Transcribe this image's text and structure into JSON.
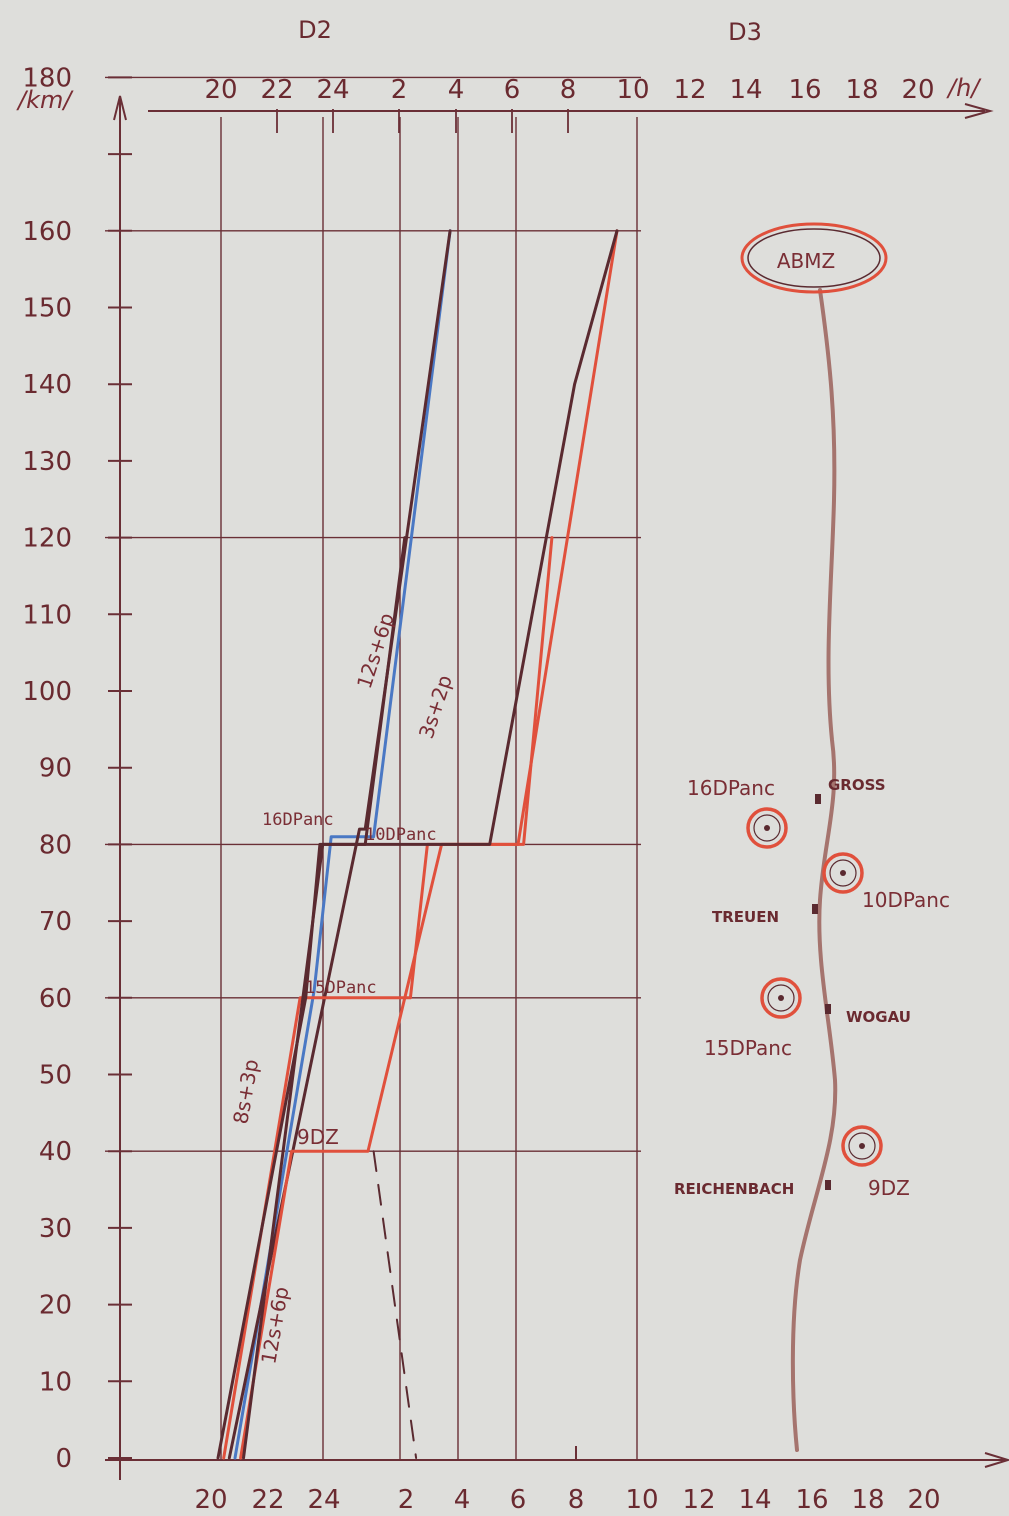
{
  "chart_data": {
    "type": "line",
    "title": "",
    "ylabel": "/km/",
    "xlabel": "/h/",
    "day_labels": [
      "D2",
      "D3"
    ],
    "y_ticks": [
      0,
      10,
      20,
      30,
      40,
      50,
      60,
      70,
      80,
      90,
      100,
      110,
      120,
      130,
      140,
      150,
      160,
      170,
      180
    ],
    "y_tick_labels": [
      "0",
      "10",
      "20",
      "30",
      "40",
      "50",
      "60",
      "70",
      "80",
      "90",
      "100",
      "110",
      "120",
      "130",
      "140",
      "150",
      "160",
      "",
      "180"
    ],
    "ylim": [
      0,
      180
    ],
    "x_tick_labels_top": [
      "20",
      "22",
      "24",
      "2",
      "4",
      "6",
      "8",
      "10",
      "12",
      "14",
      "16",
      "18",
      "20"
    ],
    "x_tick_labels_bottom": [
      "20",
      "22",
      "24",
      "2",
      "4",
      "6",
      "8",
      "10",
      "12",
      "14",
      "16",
      "18",
      "20"
    ],
    "x_unit": "hours elapsed from 20h on D2",
    "xlim": [
      0,
      24
    ],
    "grid": true,
    "colors": {
      "ink_dark": "#5a2a30",
      "ink_red": "#e0503c",
      "ink_blue": "#4a78c4",
      "route": "#a5746e",
      "paper": "#dededb"
    },
    "series": [
      {
        "name": "12s+6p",
        "color": "#4a78c4",
        "points": [
          [
            0.6,
            0
          ],
          [
            3.4,
            61
          ],
          [
            4,
            81
          ],
          [
            5.5,
            81
          ],
          [
            8.2,
            160
          ]
        ]
      },
      {
        "name": "",
        "color": "#5a2a30",
        "points": [
          [
            0.4,
            0
          ],
          [
            5,
            82
          ],
          [
            5.2,
            82
          ],
          [
            8.2,
            160
          ]
        ]
      },
      {
        "name": "8s+3p",
        "color": "#e0503c",
        "points": [
          [
            0.2,
            0
          ],
          [
            2.9,
            60
          ],
          [
            6.8,
            60
          ],
          [
            7.4,
            80
          ],
          [
            10.8,
            80
          ],
          [
            11.8,
            120
          ]
        ]
      },
      {
        "name": "",
        "color": "#5a2a30",
        "points": [
          [
            0,
            0
          ],
          [
            3.1,
            60
          ],
          [
            3.6,
            80
          ],
          [
            5.2,
            80
          ],
          [
            6.6,
            120
          ]
        ]
      },
      {
        "name": "12s+6p",
        "color": "#e0503c",
        "points": [
          [
            0.8,
            0
          ],
          [
            2.6,
            40
          ],
          [
            5.3,
            40
          ],
          [
            7.9,
            80
          ],
          [
            10.6,
            80
          ],
          [
            14.1,
            160
          ]
        ]
      },
      {
        "name": "",
        "color": "#5a2a30",
        "points": [
          [
            0.9,
            0
          ],
          [
            3.7,
            80
          ],
          [
            9.6,
            80
          ],
          [
            12.6,
            140
          ],
          [
            14.1,
            160
          ]
        ]
      },
      {
        "name": "",
        "color": "#5a2a30",
        "points": [
          [
            5.5,
            40
          ],
          [
            7,
            0
          ]
        ],
        "dashed": true
      }
    ],
    "annotations": [
      "16DPanc",
      "10DPanc",
      "15DPanc",
      "9DZ",
      "12s+6p",
      "3s+2p",
      "8s+3p",
      "12s+6p"
    ],
    "map_panel": {
      "objective": "ABMZ",
      "units": [
        {
          "label": "16DPanc",
          "km": 82
        },
        {
          "label": "10DPanc",
          "km": 77
        },
        {
          "label": "15DPanc",
          "km": 61
        },
        {
          "label": "9DZ",
          "km": 41
        }
      ],
      "places": [
        {
          "label": "GROSS",
          "km": 87
        },
        {
          "label": "TREUEN",
          "km": 72
        },
        {
          "label": "WOGAU",
          "km": 57
        },
        {
          "label": "REICHENBACH",
          "km": 36
        }
      ]
    }
  }
}
